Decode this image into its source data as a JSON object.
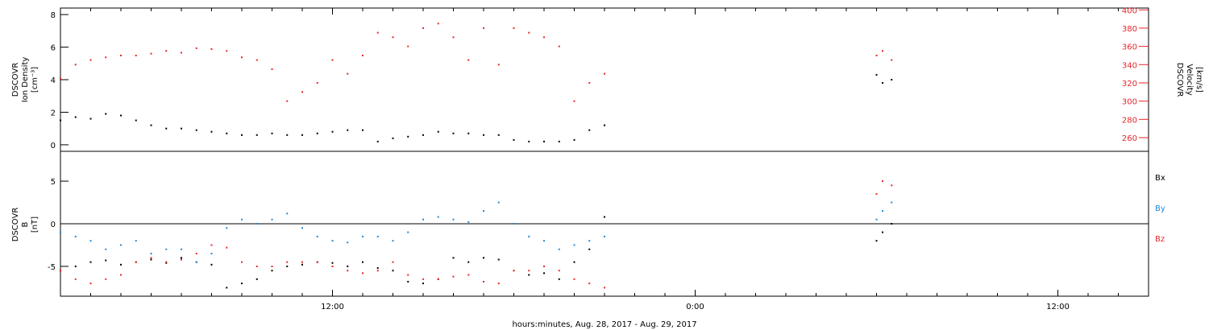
{
  "colors": {
    "black_series": "#000000",
    "red_series": "#e8262b",
    "blue_series": "#1f8ad8",
    "axis": "#000000"
  },
  "x_axis": {
    "title": "hours:minutes, Aug. 28, 2017 - Aug. 29, 2017",
    "tick_labels": [
      "12:00",
      "0:00",
      "12:00"
    ],
    "tick_hours": [
      12,
      24,
      36
    ],
    "range_hours": [
      3,
      39
    ]
  },
  "chart_data": [
    {
      "type": "scatter",
      "panel": "top",
      "left_axis": {
        "label_lines": [
          "DSCOVR",
          "Ion Density",
          "[cm⁻³]"
        ],
        "ylim": [
          -0.4,
          8.4
        ],
        "ticks": [
          "0",
          "2",
          "4",
          "6",
          "8"
        ]
      },
      "right_axis": {
        "label_lines": [
          "DSCOVR",
          "Velocity",
          "[km/s]"
        ],
        "ylim": [
          245,
          402
        ],
        "ticks": [
          "260",
          "280",
          "300",
          "320",
          "340",
          "360",
          "380",
          "400"
        ]
      },
      "series": [
        {
          "axis": "left",
          "color": "black",
          "x": [
            3.0,
            3.5,
            4.0,
            4.5,
            5.0,
            5.5,
            6.0,
            6.5,
            7.0,
            7.5,
            8.0,
            8.5,
            9.0,
            9.5,
            10.0,
            10.5,
            11.0,
            11.5,
            12.0,
            12.5,
            13.0,
            13.5,
            14.0,
            14.5,
            15.0,
            15.5,
            16.0,
            16.5,
            17.0,
            17.5,
            18.0,
            18.5,
            19.0,
            19.5,
            20.0,
            20.5,
            21.0,
            30.0,
            30.2,
            30.5
          ],
          "y": [
            1.5,
            1.7,
            1.6,
            1.9,
            1.8,
            1.5,
            1.2,
            1.0,
            1.0,
            0.9,
            0.8,
            0.7,
            0.6,
            0.6,
            0.7,
            0.6,
            0.6,
            0.7,
            0.8,
            0.9,
            0.9,
            0.2,
            0.4,
            0.5,
            0.6,
            0.8,
            0.7,
            0.7,
            0.6,
            0.6,
            0.3,
            0.2,
            0.2,
            0.2,
            0.3,
            0.9,
            1.2,
            4.3,
            3.8,
            4.0
          ]
        },
        {
          "axis": "right",
          "color": "red",
          "x": [
            3.0,
            3.5,
            4.0,
            4.5,
            5.0,
            5.5,
            6.0,
            6.5,
            7.0,
            7.5,
            8.0,
            8.5,
            9.0,
            9.5,
            10.0,
            10.5,
            11.0,
            11.5,
            12.0,
            12.5,
            13.0,
            13.5,
            14.0,
            14.5,
            15.0,
            15.5,
            16.0,
            16.5,
            17.0,
            17.5,
            18.0,
            18.5,
            19.0,
            19.5,
            20.0,
            20.5,
            21.0,
            30.0,
            30.2,
            30.5
          ],
          "y": [
            325,
            340,
            345,
            348,
            350,
            350,
            352,
            355,
            353,
            358,
            357,
            355,
            348,
            345,
            335,
            300,
            310,
            320,
            345,
            330,
            350,
            375,
            370,
            360,
            380,
            385,
            370,
            345,
            380,
            340,
            380,
            375,
            370,
            360,
            300,
            320,
            330,
            350,
            355,
            345
          ]
        }
      ]
    },
    {
      "type": "scatter",
      "panel": "bottom",
      "left_axis": {
        "label_lines": [
          "DSCOVR",
          "B",
          "[nT]"
        ],
        "ylim": [
          -8.5,
          8.5
        ],
        "ticks": [
          "-5",
          "0",
          "5"
        ]
      },
      "legend": [
        "Bx",
        "By",
        "Bz"
      ],
      "series": [
        {
          "name": "Bx",
          "color": "black",
          "x": [
            3.0,
            3.5,
            4.0,
            4.5,
            5.0,
            5.5,
            6.0,
            6.5,
            7.0,
            7.5,
            8.0,
            8.5,
            9.0,
            9.5,
            10.0,
            10.5,
            11.0,
            11.5,
            12.0,
            12.5,
            13.0,
            13.5,
            14.0,
            14.5,
            15.0,
            15.5,
            16.0,
            16.5,
            17.0,
            17.5,
            18.0,
            18.5,
            19.0,
            19.5,
            20.0,
            20.5,
            21.0,
            30.0,
            30.2,
            30.5
          ],
          "y": [
            -5.5,
            -5.0,
            -4.5,
            -4.3,
            -4.8,
            -4.5,
            -4.2,
            -4.6,
            -4.0,
            -4.5,
            -4.8,
            -7.5,
            -7.0,
            -6.5,
            -5.5,
            -5.0,
            -4.8,
            -4.5,
            -4.6,
            -5.0,
            -4.5,
            -5.2,
            -5.5,
            -6.8,
            -7.0,
            -6.5,
            -4.0,
            -4.5,
            -4.0,
            -4.2,
            -5.5,
            -6.0,
            -5.8,
            -6.5,
            -4.5,
            -3.0,
            0.8,
            -2.0,
            -1.0,
            0.0
          ]
        },
        {
          "name": "By",
          "color": "blue",
          "x": [
            3.0,
            3.5,
            4.0,
            4.5,
            5.0,
            5.5,
            6.0,
            6.5,
            7.0,
            7.5,
            8.0,
            8.5,
            9.0,
            9.5,
            10.0,
            10.5,
            11.0,
            11.5,
            12.0,
            12.5,
            13.0,
            13.5,
            14.0,
            14.5,
            15.0,
            15.5,
            16.0,
            16.5,
            17.0,
            17.5,
            18.0,
            18.5,
            19.0,
            19.5,
            20.0,
            20.5,
            21.0,
            30.0,
            30.2,
            30.5
          ],
          "y": [
            -1.0,
            -1.5,
            -2.0,
            -3.0,
            -2.5,
            -2.0,
            -3.5,
            -3.0,
            -3.0,
            -4.5,
            -3.5,
            -0.5,
            0.5,
            0.0,
            0.5,
            1.2,
            -0.5,
            -1.5,
            -2.0,
            -2.2,
            -1.5,
            -1.5,
            -2.0,
            -1.0,
            0.5,
            0.8,
            0.5,
            0.2,
            1.5,
            2.5,
            0.0,
            -1.5,
            -2.0,
            -3.0,
            -2.5,
            -2.0,
            -1.5,
            0.5,
            1.5,
            2.5
          ]
        },
        {
          "name": "Bz",
          "color": "red",
          "x": [
            3.0,
            3.5,
            4.0,
            4.5,
            5.0,
            5.5,
            6.0,
            6.5,
            7.0,
            7.5,
            8.0,
            8.5,
            9.0,
            9.5,
            10.0,
            10.5,
            11.0,
            11.5,
            12.0,
            12.5,
            13.0,
            13.5,
            14.0,
            14.5,
            15.0,
            15.5,
            16.0,
            16.5,
            17.0,
            17.5,
            18.0,
            18.5,
            19.0,
            19.5,
            20.0,
            20.5,
            21.0,
            30.0,
            30.2,
            30.5
          ],
          "y": [
            -5.5,
            -6.5,
            -7.0,
            -6.5,
            -6.0,
            -4.5,
            -4.0,
            -4.5,
            -4.2,
            -3.5,
            -2.5,
            -2.8,
            -4.5,
            -5.0,
            -5.0,
            -4.5,
            -4.5,
            -4.5,
            -5.0,
            -5.5,
            -5.8,
            -5.5,
            -4.5,
            -6.0,
            -6.5,
            -6.5,
            -6.2,
            -6.0,
            -6.8,
            -7.0,
            -5.5,
            -5.5,
            -5.0,
            -5.5,
            -6.5,
            -7.0,
            -7.5,
            3.5,
            5.0,
            4.5
          ]
        }
      ]
    }
  ]
}
